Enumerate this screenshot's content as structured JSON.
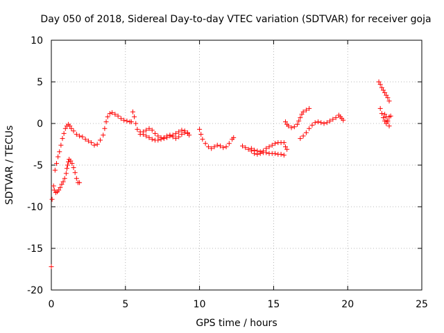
{
  "chart_data": {
    "type": "scatter",
    "title": "Day 050 of 2018, Sidereal Day-to-day VTEC variation (SDTVAR) for receiver goja",
    "xlabel": "GPS time / hours",
    "ylabel": "SDTVAR / TECUs",
    "xlim": [
      0,
      25
    ],
    "ylim": [
      -20,
      10
    ],
    "xticks": [
      0,
      5,
      10,
      15,
      20,
      25
    ],
    "yticks": [
      -20,
      -15,
      -10,
      -5,
      0,
      5,
      10
    ],
    "grid": true,
    "marker": "+",
    "color": "#ff0000",
    "series": [
      {
        "points": [
          [
            0.0,
            -17.2
          ],
          [
            0.05,
            -9.1
          ],
          [
            0.15,
            -7.5
          ],
          [
            0.2,
            -8.0
          ],
          [
            0.3,
            -8.3
          ],
          [
            0.4,
            -8.2
          ],
          [
            0.5,
            -8.0
          ],
          [
            0.6,
            -7.7
          ],
          [
            0.7,
            -7.3
          ],
          [
            0.8,
            -7.0
          ],
          [
            0.9,
            -6.6
          ],
          [
            1.0,
            -6.0
          ],
          [
            1.05,
            -5.4
          ],
          [
            1.1,
            -5.0
          ],
          [
            1.15,
            -4.6
          ],
          [
            1.2,
            -4.3
          ],
          [
            1.3,
            -4.5
          ],
          [
            1.4,
            -4.8
          ],
          [
            1.5,
            -5.3
          ],
          [
            1.6,
            -5.9
          ],
          [
            1.7,
            -6.6
          ],
          [
            1.8,
            -7.1
          ],
          [
            1.9,
            -7.1
          ],
          [
            0.25,
            -5.6
          ],
          [
            0.35,
            -4.8
          ],
          [
            0.45,
            -4.0
          ],
          [
            0.55,
            -3.4
          ],
          [
            0.65,
            -2.6
          ],
          [
            0.75,
            -1.8
          ],
          [
            0.85,
            -1.2
          ],
          [
            0.95,
            -0.6
          ],
          [
            1.05,
            -0.3
          ],
          [
            1.15,
            -0.1
          ],
          [
            1.25,
            -0.3
          ],
          [
            1.35,
            -0.6
          ],
          [
            1.5,
            -0.9
          ],
          [
            1.7,
            -1.3
          ],
          [
            1.9,
            -1.5
          ],
          [
            2.1,
            -1.6
          ],
          [
            2.3,
            -1.9
          ],
          [
            2.5,
            -2.1
          ],
          [
            2.7,
            -2.3
          ],
          [
            2.9,
            -2.6
          ],
          [
            3.1,
            -2.5
          ],
          [
            3.3,
            -2.0
          ],
          [
            3.5,
            -1.4
          ],
          [
            3.6,
            -0.6
          ],
          [
            3.7,
            0.2
          ],
          [
            3.8,
            0.8
          ],
          [
            3.95,
            1.2
          ],
          [
            4.1,
            1.3
          ],
          [
            4.3,
            1.1
          ],
          [
            4.5,
            0.9
          ],
          [
            4.7,
            0.6
          ],
          [
            4.9,
            0.4
          ],
          [
            5.1,
            0.3
          ],
          [
            5.3,
            0.2
          ],
          [
            5.4,
            0.2
          ],
          [
            5.5,
            1.4
          ],
          [
            5.6,
            0.8
          ],
          [
            5.7,
            0.0
          ],
          [
            5.8,
            -0.7
          ],
          [
            6.0,
            -1.0
          ],
          [
            6.2,
            -1.3
          ],
          [
            6.4,
            -1.5
          ],
          [
            6.6,
            -1.7
          ],
          [
            6.8,
            -1.9
          ],
          [
            7.0,
            -2.0
          ],
          [
            7.2,
            -2.0
          ],
          [
            7.4,
            -1.9
          ],
          [
            7.6,
            -1.7
          ],
          [
            7.8,
            -1.5
          ],
          [
            8.0,
            -1.4
          ],
          [
            8.2,
            -1.6
          ],
          [
            8.4,
            -1.8
          ],
          [
            8.6,
            -1.6
          ],
          [
            8.8,
            -1.3
          ],
          [
            9.0,
            -1.1
          ],
          [
            9.2,
            -1.2
          ],
          [
            9.3,
            -1.4
          ],
          [
            6.0,
            -1.3
          ],
          [
            6.2,
            -1.0
          ],
          [
            6.4,
            -0.8
          ],
          [
            6.6,
            -0.6
          ],
          [
            6.8,
            -0.8
          ],
          [
            7.0,
            -1.2
          ],
          [
            7.2,
            -1.5
          ],
          [
            7.4,
            -1.7
          ],
          [
            7.6,
            -1.8
          ],
          [
            7.8,
            -1.7
          ],
          [
            8.0,
            -1.5
          ],
          [
            8.2,
            -1.4
          ],
          [
            8.4,
            -1.2
          ],
          [
            8.6,
            -1.0
          ],
          [
            8.8,
            -0.8
          ],
          [
            9.0,
            -0.9
          ],
          [
            9.2,
            -1.1
          ],
          [
            10.0,
            -0.7
          ],
          [
            10.1,
            -1.3
          ],
          [
            10.2,
            -1.9
          ],
          [
            10.4,
            -2.4
          ],
          [
            10.6,
            -2.8
          ],
          [
            10.8,
            -3.0
          ],
          [
            11.0,
            -2.8
          ],
          [
            11.2,
            -2.6
          ],
          [
            11.4,
            -2.7
          ],
          [
            11.6,
            -2.9
          ],
          [
            11.8,
            -2.8
          ],
          [
            12.0,
            -2.4
          ],
          [
            12.2,
            -1.9
          ],
          [
            12.3,
            -1.7
          ],
          [
            12.9,
            -2.7
          ],
          [
            13.1,
            -2.9
          ],
          [
            13.3,
            -3.1
          ],
          [
            13.5,
            -3.3
          ],
          [
            13.7,
            -3.6
          ],
          [
            13.9,
            -3.7
          ],
          [
            14.1,
            -3.6
          ],
          [
            14.3,
            -3.3
          ],
          [
            14.5,
            -3.0
          ],
          [
            14.7,
            -2.8
          ],
          [
            14.9,
            -2.6
          ],
          [
            15.1,
            -2.4
          ],
          [
            15.3,
            -2.3
          ],
          [
            15.5,
            -2.3
          ],
          [
            13.5,
            -3.0
          ],
          [
            13.7,
            -3.2
          ],
          [
            13.9,
            -3.3
          ],
          [
            14.1,
            -3.4
          ],
          [
            14.3,
            -3.5
          ],
          [
            14.5,
            -3.5
          ],
          [
            14.7,
            -3.6
          ],
          [
            14.9,
            -3.6
          ],
          [
            15.1,
            -3.6
          ],
          [
            15.3,
            -3.7
          ],
          [
            15.5,
            -3.7
          ],
          [
            15.7,
            -3.8
          ],
          [
            15.7,
            -2.3
          ],
          [
            15.8,
            -2.8
          ],
          [
            15.9,
            -3.1
          ],
          [
            15.8,
            0.2
          ],
          [
            15.9,
            -0.1
          ],
          [
            16.0,
            -0.3
          ],
          [
            16.2,
            -0.5
          ],
          [
            16.4,
            -0.4
          ],
          [
            16.6,
            -0.1
          ],
          [
            16.7,
            0.3
          ],
          [
            16.8,
            0.7
          ],
          [
            16.9,
            1.1
          ],
          [
            17.0,
            1.4
          ],
          [
            17.2,
            1.6
          ],
          [
            17.4,
            1.8
          ],
          [
            16.8,
            -1.8
          ],
          [
            17.0,
            -1.5
          ],
          [
            17.2,
            -1.1
          ],
          [
            17.4,
            -0.6
          ],
          [
            17.6,
            -0.2
          ],
          [
            17.8,
            0.1
          ],
          [
            18.0,
            0.2
          ],
          [
            18.2,
            0.1
          ],
          [
            18.4,
            0.0
          ],
          [
            18.6,
            0.1
          ],
          [
            18.8,
            0.3
          ],
          [
            19.0,
            0.5
          ],
          [
            19.2,
            0.7
          ],
          [
            19.4,
            1.0
          ],
          [
            19.5,
            0.8
          ],
          [
            19.6,
            0.6
          ],
          [
            19.7,
            0.4
          ],
          [
            22.1,
            5.0
          ],
          [
            22.2,
            4.7
          ],
          [
            22.3,
            4.3
          ],
          [
            22.4,
            4.0
          ],
          [
            22.5,
            3.7
          ],
          [
            22.6,
            3.4
          ],
          [
            22.7,
            3.1
          ],
          [
            22.8,
            2.7
          ],
          [
            22.2,
            1.8
          ],
          [
            22.3,
            1.2
          ],
          [
            22.4,
            0.7
          ],
          [
            22.5,
            0.3
          ],
          [
            22.6,
            0.0
          ],
          [
            22.7,
            0.4
          ],
          [
            22.8,
            0.8
          ],
          [
            22.9,
            0.9
          ],
          [
            22.5,
            1.1
          ],
          [
            22.6,
            0.8
          ],
          [
            22.7,
            0.2
          ],
          [
            22.8,
            -0.3
          ]
        ]
      }
    ]
  }
}
